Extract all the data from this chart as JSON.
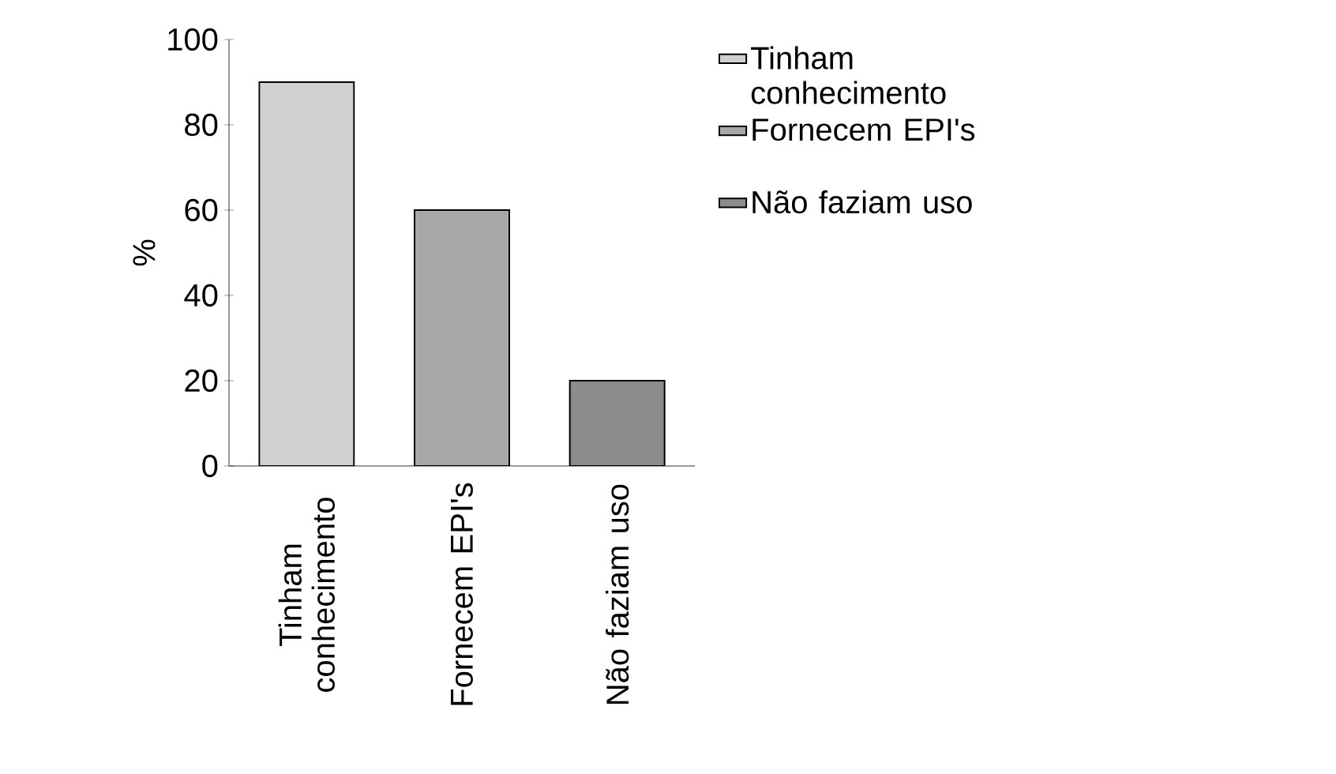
{
  "chart_data": {
    "type": "bar",
    "ylabel": "%",
    "categories": [
      "Tinham conhecimento",
      "Fornecem EPI's",
      "Não faziam uso"
    ],
    "series": [
      {
        "name": "Tinham conhecimento",
        "color": "#d0d0d0",
        "values": [
          90,
          null,
          null
        ]
      },
      {
        "name": "Fornecem EPI's",
        "color": "#a8a8a8",
        "values": [
          null,
          60,
          null
        ]
      },
      {
        "name": "Não faziam uso",
        "color": "#8c8c8c",
        "values": [
          null,
          null,
          20
        ]
      }
    ],
    "ylim": [
      0,
      100
    ],
    "yticks": [
      0,
      20,
      40,
      60,
      80,
      100
    ],
    "legend": "right"
  }
}
